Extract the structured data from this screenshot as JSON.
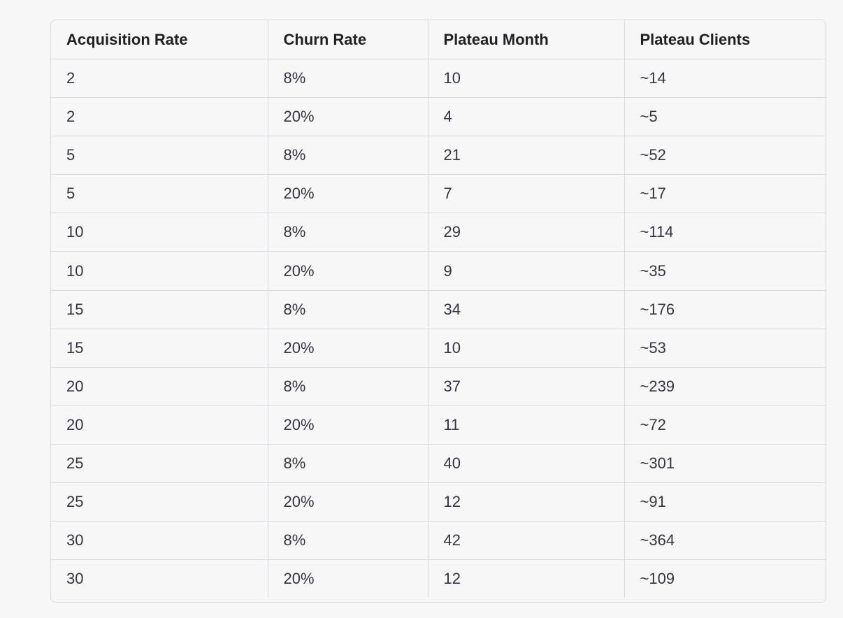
{
  "table": {
    "headers": [
      "Acquisition Rate",
      "Churn Rate",
      "Plateau Month",
      "Plateau Clients"
    ],
    "rows": [
      [
        "2",
        "8%",
        "10",
        "~14"
      ],
      [
        "2",
        "20%",
        "4",
        "~5"
      ],
      [
        "5",
        "8%",
        "21",
        "~52"
      ],
      [
        "5",
        "20%",
        "7",
        "~17"
      ],
      [
        "10",
        "8%",
        "29",
        "~114"
      ],
      [
        "10",
        "20%",
        "9",
        "~35"
      ],
      [
        "15",
        "8%",
        "34",
        "~176"
      ],
      [
        "15",
        "20%",
        "10",
        "~53"
      ],
      [
        "20",
        "8%",
        "37",
        "~239"
      ],
      [
        "20",
        "20%",
        "11",
        "~72"
      ],
      [
        "25",
        "8%",
        "40",
        "~301"
      ],
      [
        "25",
        "20%",
        "12",
        "~91"
      ],
      [
        "30",
        "8%",
        "42",
        "~364"
      ],
      [
        "30",
        "20%",
        "12",
        "~109"
      ]
    ]
  },
  "colors": {
    "background": "#f7f7f8",
    "border": "#d9d9e3",
    "text": "#343541",
    "header_text": "#202123"
  }
}
